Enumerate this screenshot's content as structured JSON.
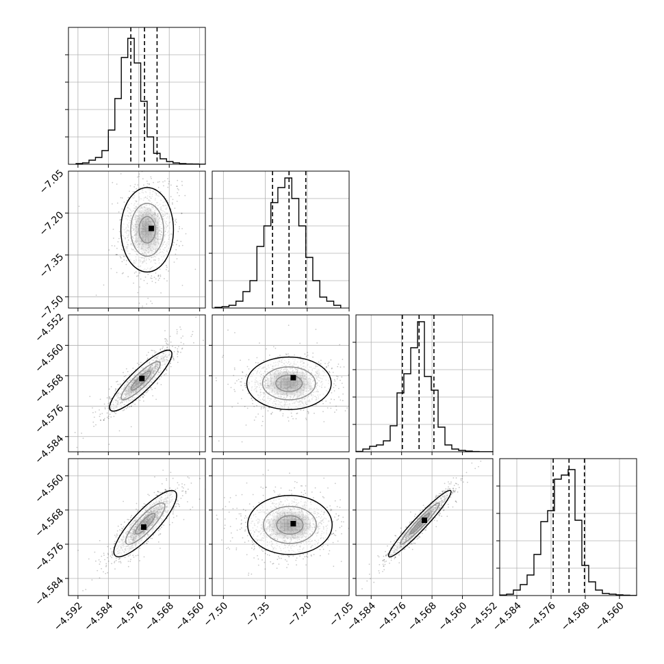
{
  "chart_data": {
    "type": "corner",
    "n_params": 4,
    "title": "",
    "grid": true,
    "colors": {
      "line": "#000000",
      "grid": "#b0b0b0",
      "points": "#000000",
      "background": "#ffffff"
    },
    "axis_ranges": [
      [
        -4.5945,
        -4.5585
      ],
      [
        -7.54,
        -7.05
      ],
      [
        -4.588,
        -4.552
      ],
      [
        -4.588,
        -4.556
      ]
    ],
    "ticks": [
      {
        "values": [
          -4.592,
          -4.584,
          -4.576,
          -4.568,
          -4.56
        ],
        "labels": [
          "−4.592",
          "−4.584",
          "−4.576",
          "−4.568",
          "−4.560"
        ]
      },
      {
        "values": [
          -7.5,
          -7.35,
          -7.2,
          -7.05
        ],
        "labels": [
          "−7.50",
          "−7.35",
          "−7.20",
          "−7.05"
        ]
      },
      {
        "values": [
          -4.584,
          -4.576,
          -4.568,
          -4.56,
          -4.552
        ],
        "labels": [
          "−4.584",
          "−4.576",
          "−4.568",
          "−4.560",
          "−4.552"
        ]
      },
      {
        "values": [
          -4.584,
          -4.576,
          -4.568,
          -4.56
        ],
        "labels": [
          "−4.584",
          "−4.576",
          "−4.568",
          "−4.560"
        ]
      }
    ],
    "histograms": [
      {
        "param": 0,
        "quantiles": [
          -4.5781,
          -4.5745,
          -4.5712
        ],
        "peak_height": 0.92,
        "edges": [
          -4.5925,
          -4.5908,
          -4.5891,
          -4.5874,
          -4.5857,
          -4.584,
          -4.5823,
          -4.5806,
          -4.5789,
          -4.5772,
          -4.5755,
          -4.5738,
          -4.5721,
          -4.5704,
          -4.5687,
          -4.567,
          -4.5653,
          -4.5636,
          -4.5619,
          -4.5602,
          -4.5585
        ],
        "counts": [
          0.005,
          0.01,
          0.03,
          0.05,
          0.1,
          0.25,
          0.48,
          0.78,
          0.92,
          0.74,
          0.46,
          0.2,
          0.08,
          0.04,
          0.02,
          0.01,
          0.005,
          0.003,
          0.002,
          0.001
        ]
      },
      {
        "param": 1,
        "quantiles": [
          -7.324,
          -7.265,
          -7.205
        ],
        "peak_height": 0.95,
        "edges": [
          -7.53,
          -7.505,
          -7.48,
          -7.455,
          -7.43,
          -7.405,
          -7.38,
          -7.355,
          -7.33,
          -7.305,
          -7.28,
          -7.255,
          -7.23,
          -7.205,
          -7.18,
          -7.155,
          -7.13,
          -7.105,
          -7.08
        ],
        "counts": [
          0.005,
          0.01,
          0.02,
          0.05,
          0.12,
          0.2,
          0.45,
          0.6,
          0.77,
          0.88,
          0.95,
          0.8,
          0.6,
          0.37,
          0.2,
          0.08,
          0.05,
          0.02
        ]
      },
      {
        "param": 2,
        "quantiles": [
          -4.5758,
          -4.5714,
          -4.5675
        ],
        "peak_height": 0.95,
        "edges": [
          -4.588,
          -4.5862,
          -4.5844,
          -4.5826,
          -4.5808,
          -4.579,
          -4.5772,
          -4.5754,
          -4.5736,
          -4.5718,
          -4.57,
          -4.5682,
          -4.5664,
          -4.5646,
          -4.5628,
          -4.561,
          -4.5592,
          -4.5574,
          -4.5556,
          -4.5538,
          -4.552
        ],
        "counts": [
          0.003,
          0.02,
          0.04,
          0.05,
          0.08,
          0.19,
          0.43,
          0.57,
          0.76,
          0.95,
          0.55,
          0.45,
          0.18,
          0.05,
          0.02,
          0.01,
          0.005,
          0.002,
          0.001,
          0.001
        ]
      },
      {
        "param": 3,
        "quantiles": [
          -4.5755,
          -4.5718,
          -4.5682
        ],
        "peak_height": 0.92,
        "edges": [
          -4.588,
          -4.5864,
          -4.5848,
          -4.5832,
          -4.5816,
          -4.58,
          -4.5784,
          -4.5768,
          -4.5752,
          -4.5736,
          -4.572,
          -4.5704,
          -4.5688,
          -4.5672,
          -4.5656,
          -4.564,
          -4.5624,
          -4.5608,
          -4.5592,
          -4.5576,
          -4.556
        ],
        "counts": [
          0.004,
          0.01,
          0.04,
          0.08,
          0.15,
          0.3,
          0.54,
          0.62,
          0.85,
          0.88,
          0.92,
          0.55,
          0.22,
          0.1,
          0.04,
          0.015,
          0.01,
          0.005,
          0.003,
          0.001
        ]
      }
    ],
    "scatter_panels": [
      {
        "x_param": 0,
        "y_param": 1,
        "center": [
          -4.5738,
          -7.26
        ],
        "sigma": [
          0.0032,
          0.07
        ],
        "rho": 0.05,
        "mode": [
          -4.5727,
          -7.255
        ]
      },
      {
        "x_param": 0,
        "y_param": 2,
        "center": [
          -4.5755,
          -4.5693
        ],
        "sigma": [
          0.0038,
          0.0037
        ],
        "rho": 0.88,
        "mode": [
          -4.5752,
          -4.5687
        ]
      },
      {
        "x_param": 1,
        "y_param": 2,
        "center": [
          -7.265,
          -4.57
        ],
        "sigma": [
          0.07,
          0.0032
        ],
        "rho": 0.05,
        "mode": [
          -7.25,
          -4.5685
        ]
      },
      {
        "x_param": 0,
        "y_param": 3,
        "center": [
          -4.5743,
          -4.5712
        ],
        "sigma": [
          0.0038,
          0.0036
        ],
        "rho": 0.85,
        "mode": [
          -4.5747,
          -4.572
        ]
      },
      {
        "x_param": 1,
        "y_param": 3,
        "center": [
          -7.262,
          -4.5715
        ],
        "sigma": [
          0.07,
          0.0032
        ],
        "rho": 0.05,
        "mode": [
          -7.25,
          -4.5712
        ]
      },
      {
        "x_param": 2,
        "y_param": 3,
        "center": [
          -4.5712,
          -4.5712
        ],
        "sigma": [
          0.0038,
          0.0036
        ],
        "rho": 0.96,
        "mode": [
          -4.57,
          -4.5704
        ]
      }
    ]
  }
}
